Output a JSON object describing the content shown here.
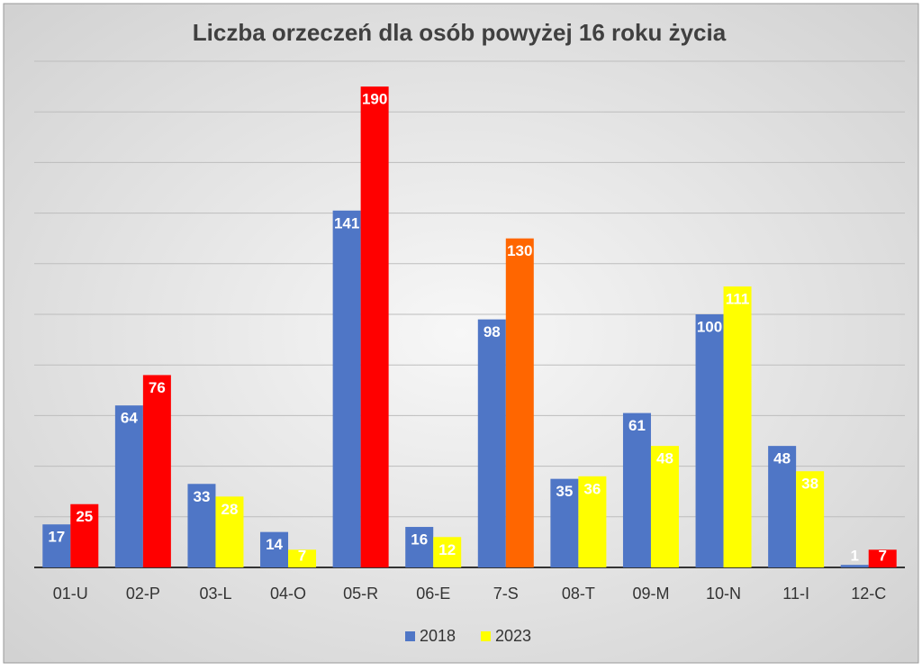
{
  "chart_data": {
    "type": "bar",
    "title": "Liczba orzeczeń dla osób powyżej 16 roku życia",
    "categories": [
      "01-U",
      "02-P",
      "03-L",
      "04-O",
      "05-R",
      "06-E",
      "7-S",
      "08-T",
      "09-M",
      "10-N",
      "11-I",
      "12-C"
    ],
    "series": [
      {
        "name": "2018",
        "color": "#4f76c6",
        "values": [
          17,
          64,
          33,
          14,
          141,
          16,
          98,
          35,
          61,
          100,
          48,
          1
        ]
      },
      {
        "name": "2023",
        "color": "#ffff00",
        "values": [
          25,
          76,
          28,
          7,
          190,
          12,
          130,
          36,
          48,
          111,
          38,
          7
        ],
        "colors": [
          "#ff0000",
          "#ff0000",
          "#ffff00",
          "#ffff00",
          "#ff0000",
          "#ffff00",
          "#ff6600",
          "#ffff00",
          "#ffff00",
          "#ffff00",
          "#ffff00",
          "#ff0000"
        ]
      }
    ],
    "ylim": [
      0,
      200
    ],
    "yticks": [
      0,
      20,
      40,
      60,
      80,
      100,
      120,
      140,
      160,
      180,
      200
    ],
    "grid": true,
    "legend": "bottom"
  }
}
